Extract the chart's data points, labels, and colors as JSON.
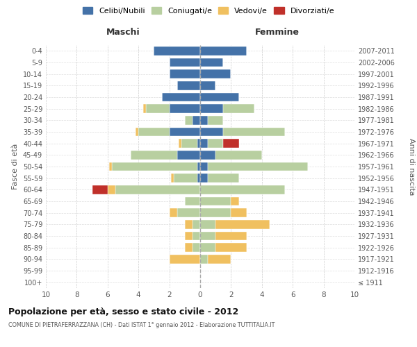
{
  "age_groups": [
    "100+",
    "95-99",
    "90-94",
    "85-89",
    "80-84",
    "75-79",
    "70-74",
    "65-69",
    "60-64",
    "55-59",
    "50-54",
    "45-49",
    "40-44",
    "35-39",
    "30-34",
    "25-29",
    "20-24",
    "15-19",
    "10-14",
    "5-9",
    "0-4"
  ],
  "birth_years": [
    "≤ 1911",
    "1912-1916",
    "1917-1921",
    "1922-1926",
    "1927-1931",
    "1932-1936",
    "1937-1941",
    "1942-1946",
    "1947-1951",
    "1952-1956",
    "1957-1961",
    "1962-1966",
    "1967-1971",
    "1972-1976",
    "1977-1981",
    "1982-1986",
    "1987-1991",
    "1992-1996",
    "1997-2001",
    "2002-2006",
    "2007-2011"
  ],
  "males_celibi": [
    0,
    0,
    0,
    0,
    0,
    0,
    0,
    0,
    0,
    0.2,
    0.2,
    1.5,
    0.2,
    2.0,
    0.5,
    2.0,
    2.5,
    1.5,
    2.0,
    2.0,
    3.0
  ],
  "males_coniugati": [
    0,
    0,
    0,
    0.5,
    0.5,
    0.5,
    1.5,
    1.0,
    5.5,
    1.5,
    5.5,
    3.0,
    1.0,
    2.0,
    0.5,
    1.5,
    0,
    0,
    0,
    0,
    0
  ],
  "males_vedovi": [
    0,
    0,
    2.0,
    0.5,
    0.5,
    0.5,
    0.5,
    0,
    0.5,
    0.2,
    0.2,
    0,
    0.2,
    0.2,
    0,
    0.2,
    0,
    0,
    0,
    0,
    0
  ],
  "males_divorziati": [
    0,
    0,
    0,
    0,
    0,
    0,
    0,
    0,
    1.0,
    0,
    0,
    0,
    0,
    0,
    0,
    0,
    0,
    0,
    0,
    0,
    0
  ],
  "females_nubili": [
    0,
    0,
    0,
    0,
    0,
    0,
    0,
    0,
    0,
    0.5,
    0.5,
    1.0,
    0.5,
    1.5,
    0.5,
    1.5,
    2.5,
    1.0,
    2.0,
    1.5,
    3.0
  ],
  "females_coniugate": [
    0,
    0,
    0.5,
    1.0,
    1.0,
    1.0,
    2.0,
    2.0,
    5.5,
    2.0,
    6.5,
    3.0,
    1.0,
    4.0,
    1.0,
    2.0,
    0,
    0,
    0,
    0,
    0
  ],
  "females_vedove": [
    0,
    0,
    1.5,
    2.0,
    2.0,
    3.5,
    1.0,
    0.5,
    0,
    0,
    0,
    0,
    0,
    0,
    0,
    0,
    0,
    0,
    0,
    0,
    0
  ],
  "females_divorziate": [
    0,
    0,
    0,
    0,
    0,
    0,
    0,
    0,
    0,
    0,
    0,
    0,
    1.0,
    0,
    0,
    0,
    0,
    0,
    0,
    0,
    0
  ],
  "color_celibi": "#4472a8",
  "color_coniugati": "#b8cfa0",
  "color_vedovi": "#f0c060",
  "color_divorziati": "#c0302a",
  "title": "Popolazione per età, sesso e stato civile - 2012",
  "subtitle": "COMUNE DI PIETRAFERRAZZANA (CH) - Dati ISTAT 1° gennaio 2012 - Elaborazione TUTTITALIA.IT",
  "label_maschi": "Maschi",
  "label_femmine": "Femmine",
  "label_fasce": "Fasce di età",
  "label_anni": "Anni di nascita",
  "legend_labels": [
    "Celibi/Nubili",
    "Coniugati/e",
    "Vedovi/e",
    "Divorziati/e"
  ],
  "xlim": 10,
  "bar_height": 0.75
}
